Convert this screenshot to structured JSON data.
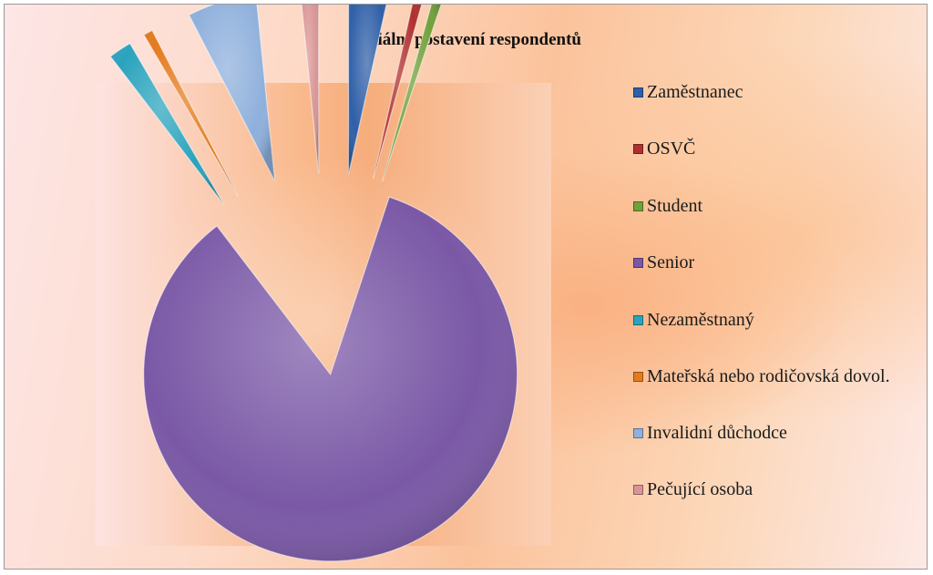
{
  "chart_data": {
    "type": "pie",
    "title": "Sociální postavení respondentů",
    "categories": [
      "Zaměstnanec",
      "OSVČ",
      "Student",
      "Senior",
      "Nezaměstnaný",
      "Mateřská nebo rodičovská dovol.",
      "Invalidní důchodce",
      "Pečující osoba"
    ],
    "values": [
      3.5,
      0.8,
      0.8,
      84.5,
      2.0,
      0.8,
      6.0,
      1.6
    ],
    "colors": [
      "#2f5fa8",
      "#b0302e",
      "#72a03a",
      "#7a58a6",
      "#2aa3bd",
      "#e47a1e",
      "#8fb0dc",
      "#d99595"
    ],
    "exploded": true,
    "legend_position": "right"
  }
}
